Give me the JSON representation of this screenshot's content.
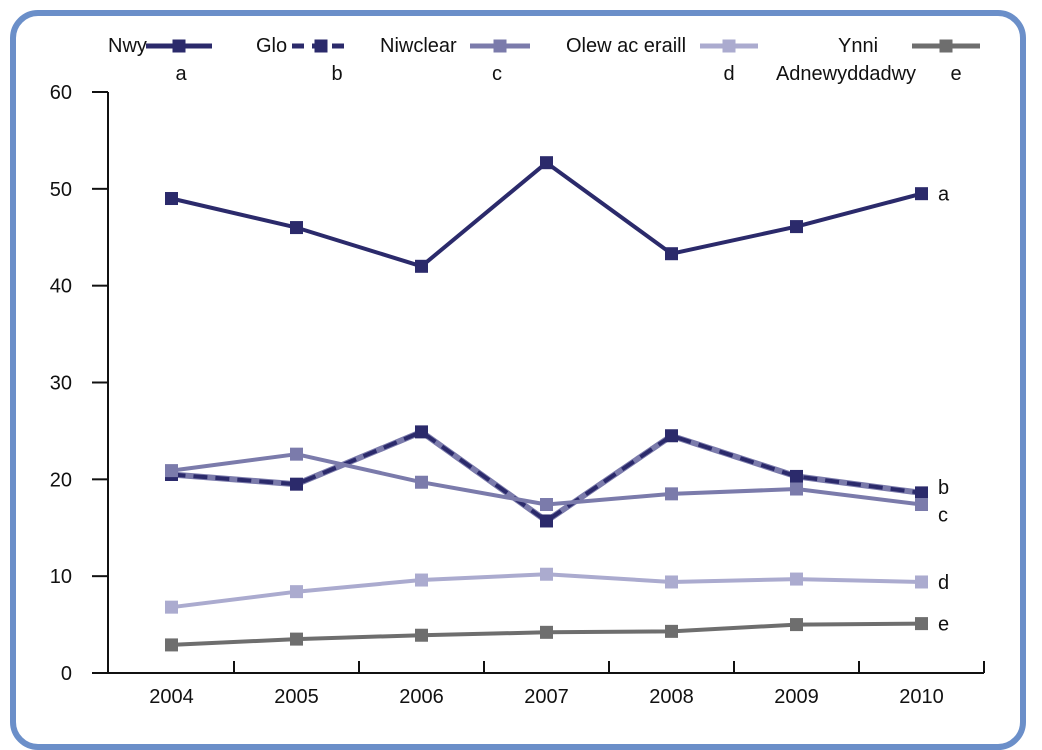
{
  "chart_data": {
    "type": "line",
    "title": "",
    "xlabel": "",
    "ylabel": "",
    "categories": [
      "2004",
      "2005",
      "2006",
      "2007",
      "2008",
      "2009",
      "2010"
    ],
    "ylim": [
      0,
      60
    ],
    "yticks": [
      0,
      10,
      20,
      30,
      40,
      50,
      60
    ],
    "grid": false,
    "legend_position": "top",
    "series": [
      {
        "name": "Nwy",
        "code": "a",
        "color": "#2b2a6b",
        "dash": false,
        "values": [
          49,
          46,
          42,
          52.7,
          43.3,
          46.1,
          49.5
        ]
      },
      {
        "name": "Glo",
        "code": "b",
        "color": "#2b2a6b",
        "dash": true,
        "values": [
          20.5,
          19.5,
          24.9,
          15.7,
          24.5,
          20.3,
          18.6
        ]
      },
      {
        "name": "Niwclear",
        "code": "c",
        "color": "#7b7bab",
        "dash": false,
        "values": [
          20.9,
          22.6,
          19.7,
          17.4,
          18.5,
          19,
          17.4
        ]
      },
      {
        "name": "Olew ac eraill",
        "code": "d",
        "color": "#ababcf",
        "dash": false,
        "values": [
          6.8,
          8.4,
          9.6,
          10.2,
          9.4,
          9.7,
          9.4
        ]
      },
      {
        "name": "Ynni Adnewyddadwy",
        "code": "e",
        "color": "#6e6e6e",
        "dash": false,
        "values": [
          2.9,
          3.5,
          3.9,
          4.2,
          4.3,
          5.0,
          5.1
        ]
      }
    ],
    "legend": [
      {
        "name_lines": [
          "Nwy"
        ],
        "code": "a"
      },
      {
        "name_lines": [
          "Glo"
        ],
        "code": "b"
      },
      {
        "name_lines": [
          "Niwclear"
        ],
        "code": "c"
      },
      {
        "name_lines": [
          "Olew ac eraill"
        ],
        "code": "d"
      },
      {
        "name_lines": [
          "Ynni",
          "Adnewyddadwy"
        ],
        "code": "e"
      }
    ]
  }
}
